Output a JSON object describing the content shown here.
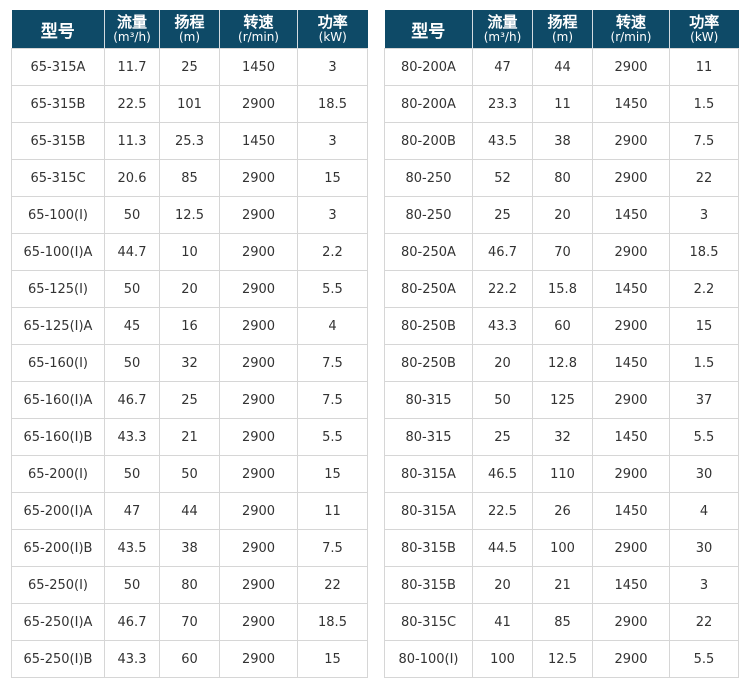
{
  "headers": {
    "model": "型号",
    "flow": "流量",
    "flow_unit": "(m³/h)",
    "head": "扬程",
    "head_unit": "(m)",
    "speed": "转速",
    "speed_unit": "(r/min)",
    "power": "功率",
    "power_unit": "(kW)"
  },
  "left_rows": [
    [
      "65-315A",
      "11.7",
      "25",
      "1450",
      "3"
    ],
    [
      "65-315B",
      "22.5",
      "101",
      "2900",
      "18.5"
    ],
    [
      "65-315B",
      "11.3",
      "25.3",
      "1450",
      "3"
    ],
    [
      "65-315C",
      "20.6",
      "85",
      "2900",
      "15"
    ],
    [
      "65-100(I)",
      "50",
      "12.5",
      "2900",
      "3"
    ],
    [
      "65-100(I)A",
      "44.7",
      "10",
      "2900",
      "2.2"
    ],
    [
      "65-125(I)",
      "50",
      "20",
      "2900",
      "5.5"
    ],
    [
      "65-125(I)A",
      "45",
      "16",
      "2900",
      "4"
    ],
    [
      "65-160(I)",
      "50",
      "32",
      "2900",
      "7.5"
    ],
    [
      "65-160(I)A",
      "46.7",
      "25",
      "2900",
      "7.5"
    ],
    [
      "65-160(I)B",
      "43.3",
      "21",
      "2900",
      "5.5"
    ],
    [
      "65-200(I)",
      "50",
      "50",
      "2900",
      "15"
    ],
    [
      "65-200(I)A",
      "47",
      "44",
      "2900",
      "11"
    ],
    [
      "65-200(I)B",
      "43.5",
      "38",
      "2900",
      "7.5"
    ],
    [
      "65-250(I)",
      "50",
      "80",
      "2900",
      "22"
    ],
    [
      "65-250(I)A",
      "46.7",
      "70",
      "2900",
      "18.5"
    ],
    [
      "65-250(I)B",
      "43.3",
      "60",
      "2900",
      "15"
    ]
  ],
  "right_rows": [
    [
      "80-200A",
      "47",
      "44",
      "2900",
      "11"
    ],
    [
      "80-200A",
      "23.3",
      "11",
      "1450",
      "1.5"
    ],
    [
      "80-200B",
      "43.5",
      "38",
      "2900",
      "7.5"
    ],
    [
      "80-250",
      "52",
      "80",
      "2900",
      "22"
    ],
    [
      "80-250",
      "25",
      "20",
      "1450",
      "3"
    ],
    [
      "80-250A",
      "46.7",
      "70",
      "2900",
      "18.5"
    ],
    [
      "80-250A",
      "22.2",
      "15.8",
      "1450",
      "2.2"
    ],
    [
      "80-250B",
      "43.3",
      "60",
      "2900",
      "15"
    ],
    [
      "80-250B",
      "20",
      "12.8",
      "1450",
      "1.5"
    ],
    [
      "80-315",
      "50",
      "125",
      "2900",
      "37"
    ],
    [
      "80-315",
      "25",
      "32",
      "1450",
      "5.5"
    ],
    [
      "80-315A",
      "46.5",
      "110",
      "2900",
      "30"
    ],
    [
      "80-315A",
      "22.5",
      "26",
      "1450",
      "4"
    ],
    [
      "80-315B",
      "44.5",
      "100",
      "2900",
      "30"
    ],
    [
      "80-315B",
      "20",
      "21",
      "1450",
      "3"
    ],
    [
      "80-315C",
      "41",
      "85",
      "2900",
      "22"
    ],
    [
      "80-100(I)",
      "100",
      "12.5",
      "2900",
      "5.5"
    ]
  ]
}
